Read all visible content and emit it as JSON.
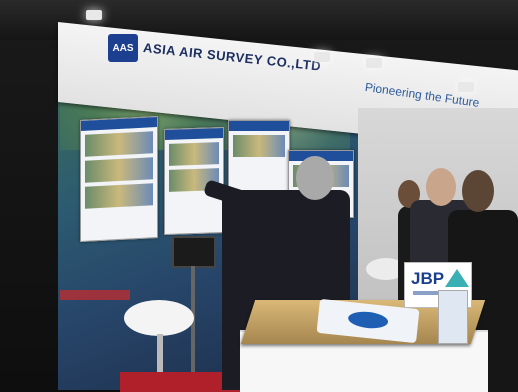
{
  "booth": {
    "company_name": "ASIA AIR SURVEY CO.,LTD",
    "logo_text": "AAS",
    "tagline": "Pioneering the Future",
    "sign_text": "JBP"
  }
}
